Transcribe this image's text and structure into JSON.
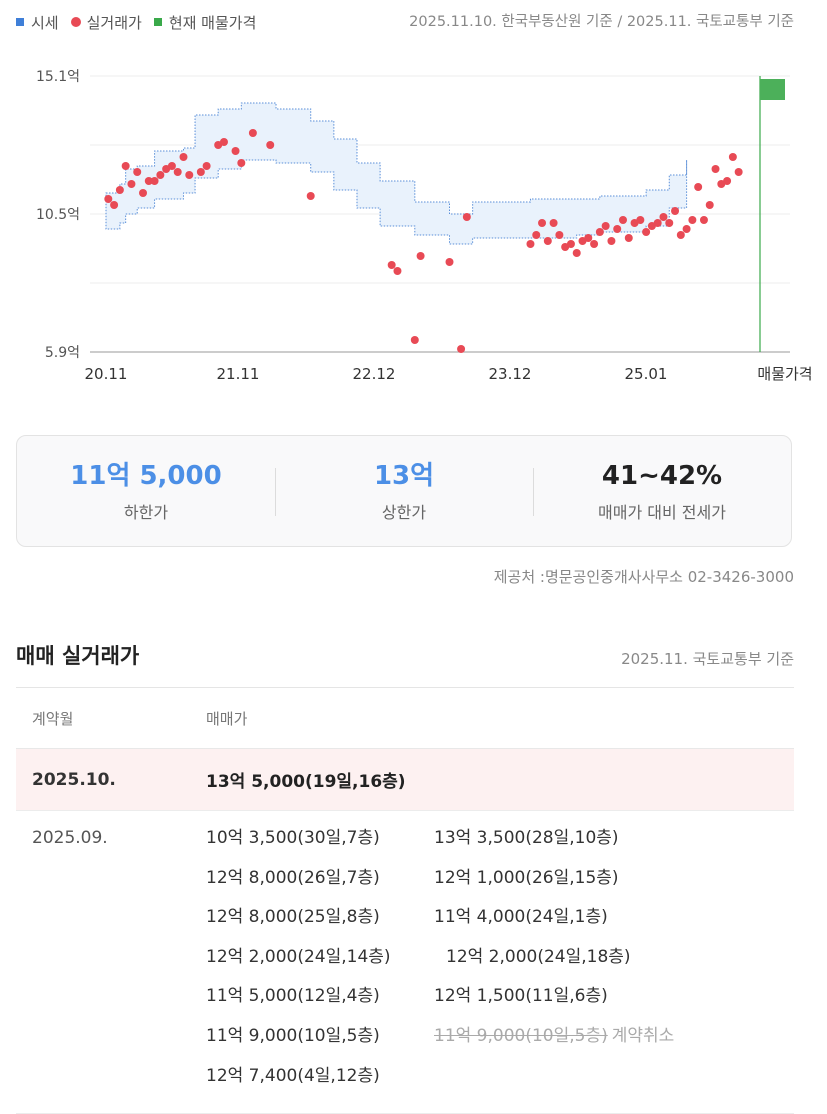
{
  "legend": {
    "items": [
      {
        "label": "시세",
        "color": "#3f7fd8",
        "shape": "square"
      },
      {
        "label": "실거래가",
        "color": "#e84a55",
        "shape": "circle"
      },
      {
        "label": "현재 매물가격",
        "color": "#3aa94a",
        "shape": "square"
      }
    ],
    "source": "2025.11.10. 한국부동산원 기준 / 2025.11. 국토교통부 기준"
  },
  "chart_data": {
    "type": "scatter",
    "y_unit": "억",
    "y_ticks": [
      "15.1억",
      "10.5억",
      "5.9억"
    ],
    "ylim": [
      5.9,
      15.1
    ],
    "x_ticks": [
      "20.11",
      "21.11",
      "22.12",
      "23.12",
      "25.01",
      "매물가격"
    ],
    "xlim": [
      "2020-11",
      "2025-11"
    ],
    "price_band": {
      "upper": [
        [
          2020.83,
          11.2
        ],
        [
          2020.95,
          11.5
        ],
        [
          2021.0,
          12.0
        ],
        [
          2021.1,
          12.1
        ],
        [
          2021.25,
          12.6
        ],
        [
          2021.5,
          12.7
        ],
        [
          2021.6,
          13.8
        ],
        [
          2021.8,
          14.0
        ],
        [
          2022.0,
          14.2
        ],
        [
          2022.3,
          14.0
        ],
        [
          2022.6,
          13.6
        ],
        [
          2022.8,
          13.0
        ],
        [
          2023.0,
          12.2
        ],
        [
          2023.2,
          11.6
        ],
        [
          2023.5,
          10.9
        ],
        [
          2023.8,
          10.5
        ],
        [
          2024.0,
          10.9
        ],
        [
          2024.5,
          11.0
        ],
        [
          2024.9,
          11.0
        ],
        [
          2025.1,
          11.1
        ],
        [
          2025.3,
          11.1
        ],
        [
          2025.5,
          11.3
        ],
        [
          2025.7,
          11.8
        ],
        [
          2025.85,
          12.3
        ]
      ],
      "lower": [
        [
          2020.83,
          10.0
        ],
        [
          2020.95,
          10.2
        ],
        [
          2021.0,
          10.5
        ],
        [
          2021.1,
          10.7
        ],
        [
          2021.25,
          11.0
        ],
        [
          2021.5,
          11.2
        ],
        [
          2021.6,
          11.7
        ],
        [
          2021.8,
          12.0
        ],
        [
          2022.0,
          12.3
        ],
        [
          2022.3,
          12.2
        ],
        [
          2022.6,
          11.9
        ],
        [
          2022.8,
          11.3
        ],
        [
          2023.0,
          10.7
        ],
        [
          2023.2,
          10.1
        ],
        [
          2023.5,
          9.8
        ],
        [
          2023.8,
          9.5
        ],
        [
          2024.0,
          9.7
        ],
        [
          2024.5,
          9.7
        ],
        [
          2024.9,
          9.8
        ],
        [
          2025.1,
          9.9
        ],
        [
          2025.3,
          9.9
        ],
        [
          2025.5,
          10.1
        ],
        [
          2025.7,
          10.7
        ],
        [
          2025.85,
          11.0
        ]
      ]
    },
    "trades": [
      [
        2020.85,
        11.0
      ],
      [
        2020.9,
        10.8
      ],
      [
        2020.95,
        11.3
      ],
      [
        2021.0,
        12.1
      ],
      [
        2021.05,
        11.5
      ],
      [
        2021.1,
        11.9
      ],
      [
        2021.15,
        11.2
      ],
      [
        2021.2,
        11.6
      ],
      [
        2021.25,
        11.6
      ],
      [
        2021.3,
        11.8
      ],
      [
        2021.35,
        12.0
      ],
      [
        2021.4,
        12.1
      ],
      [
        2021.45,
        11.9
      ],
      [
        2021.5,
        12.4
      ],
      [
        2021.55,
        11.8
      ],
      [
        2021.65,
        11.9
      ],
      [
        2021.7,
        12.1
      ],
      [
        2021.8,
        12.8
      ],
      [
        2021.85,
        12.9
      ],
      [
        2021.95,
        12.6
      ],
      [
        2022.0,
        12.2
      ],
      [
        2022.1,
        13.2
      ],
      [
        2022.25,
        12.8
      ],
      [
        2022.6,
        11.1
      ],
      [
        2023.3,
        8.8
      ],
      [
        2023.35,
        8.6
      ],
      [
        2023.5,
        6.3
      ],
      [
        2023.55,
        9.1
      ],
      [
        2023.8,
        8.9
      ],
      [
        2023.9,
        6.0
      ],
      [
        2023.95,
        10.4
      ],
      [
        2024.5,
        9.5
      ],
      [
        2024.55,
        9.8
      ],
      [
        2024.6,
        10.2
      ],
      [
        2024.65,
        9.6
      ],
      [
        2024.7,
        10.2
      ],
      [
        2024.75,
        9.8
      ],
      [
        2024.8,
        9.4
      ],
      [
        2024.85,
        9.5
      ],
      [
        2024.9,
        9.2
      ],
      [
        2024.95,
        9.6
      ],
      [
        2025.0,
        9.7
      ],
      [
        2025.05,
        9.5
      ],
      [
        2025.1,
        9.9
      ],
      [
        2025.15,
        10.1
      ],
      [
        2025.2,
        9.6
      ],
      [
        2025.25,
        10.0
      ],
      [
        2025.3,
        10.3
      ],
      [
        2025.35,
        9.7
      ],
      [
        2025.4,
        10.2
      ],
      [
        2025.45,
        10.3
      ],
      [
        2025.5,
        9.9
      ],
      [
        2025.55,
        10.1
      ],
      [
        2025.6,
        10.2
      ],
      [
        2025.65,
        10.4
      ],
      [
        2025.7,
        10.2
      ],
      [
        2025.75,
        10.6
      ],
      [
        2025.8,
        9.8
      ],
      [
        2025.85,
        10.0
      ],
      [
        2025.9,
        10.3
      ],
      [
        2025.95,
        11.4
      ],
      [
        2026.0,
        10.3
      ],
      [
        2026.05,
        10.8
      ],
      [
        2026.1,
        12.0
      ],
      [
        2026.15,
        11.5
      ],
      [
        2026.2,
        11.6
      ],
      [
        2026.25,
        12.4
      ],
      [
        2026.3,
        11.9
      ]
    ],
    "current_listing": {
      "low": 14.3,
      "high": 15.0,
      "color": "#3aa94a"
    }
  },
  "summary": {
    "lower": {
      "value": "11억 5,000",
      "label": "하한가"
    },
    "upper": {
      "value": "13억",
      "label": "상한가"
    },
    "ratio": {
      "value": "41~42%",
      "label": "매매가 대비 전세가"
    }
  },
  "provider": "제공처 :명문공인중개사사무소 02-3426-3000",
  "trades_section": {
    "title": "매매 실거래가",
    "source": "2025.11. 국토교통부 기준",
    "col_month": "계약월",
    "col_price": "매매가",
    "rows": [
      {
        "month": "2025.10.",
        "trades": [
          "13억 5,000(19일,16층)"
        ]
      },
      {
        "month": "2025.09.",
        "trades": [
          "10억 3,500(30일,7층)",
          "13억 3,500(28일,10층)",
          "12억 8,000(26일,7층)",
          "12억 1,000(26일,15층)",
          "12억 8,000(25일,8층)",
          "11억 4,000(24일,1층)",
          "12억 2,000(24일,14층)",
          "12억 2,000(24일,18층)",
          "11억 5,000(12일,4층)",
          "12억 1,500(11일,6층)",
          "11억 9,000(10일,5층)"
        ],
        "cancelled": {
          "amount": "11억 9,000(10일,5층)",
          "note": "계약취소"
        },
        "last": "12억 7,400(4일,12층)"
      }
    ]
  }
}
